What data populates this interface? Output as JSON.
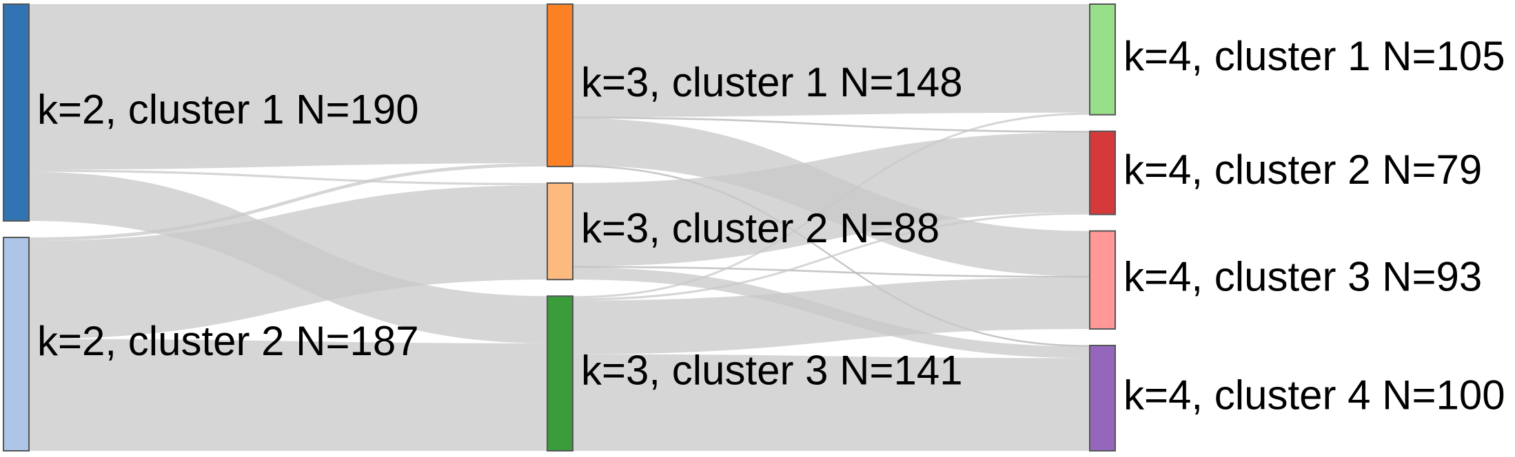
{
  "diagram": {
    "type": "sankey",
    "nodes": [
      {
        "id": "k2c1",
        "label": "k=2, cluster 1 N=190",
        "column": 0,
        "value": 190,
        "color": "#3274b3"
      },
      {
        "id": "k2c2",
        "label": "k=2, cluster 2 N=187",
        "column": 0,
        "value": 187,
        "color": "#adc6e7"
      },
      {
        "id": "k3c1",
        "label": "k=3, cluster 1 N=148",
        "column": 1,
        "value": 148,
        "color": "#fc8125"
      },
      {
        "id": "k3c2",
        "label": "k=3, cluster 2 N=88",
        "column": 1,
        "value": 88,
        "color": "#fdba7f"
      },
      {
        "id": "k3c3",
        "label": "k=3, cluster 3 N=141",
        "column": 1,
        "value": 141,
        "color": "#3a9c3a"
      },
      {
        "id": "k4c1",
        "label": "k=4, cluster 1 N=105",
        "column": 2,
        "value": 105,
        "color": "#98df8a"
      },
      {
        "id": "k4c2",
        "label": "k=4, cluster 2 N=79",
        "column": 2,
        "value": 79,
        "color": "#d6393a"
      },
      {
        "id": "k4c3",
        "label": "k=4, cluster 3 N=93",
        "column": 2,
        "value": 93,
        "color": "#ff9896"
      },
      {
        "id": "k4c4",
        "label": "k=4, cluster 4 N=100",
        "column": 2,
        "value": 100,
        "color": "#9467bd"
      }
    ],
    "links": [
      {
        "source": "k2c1",
        "target": "k3c1",
        "value": 145
      },
      {
        "source": "k2c1",
        "target": "k3c2",
        "value": 2
      },
      {
        "source": "k2c1",
        "target": "k3c3",
        "value": 43
      },
      {
        "source": "k2c2",
        "target": "k3c1",
        "value": 3
      },
      {
        "source": "k2c2",
        "target": "k3c2",
        "value": 86
      },
      {
        "source": "k2c2",
        "target": "k3c3",
        "value": 98
      },
      {
        "source": "k3c1",
        "target": "k4c1",
        "value": 103
      },
      {
        "source": "k3c1",
        "target": "k4c2",
        "value": 1
      },
      {
        "source": "k3c1",
        "target": "k4c3",
        "value": 43
      },
      {
        "source": "k3c1",
        "target": "k4c4",
        "value": 1
      },
      {
        "source": "k3c2",
        "target": "k4c2",
        "value": 76
      },
      {
        "source": "k3c2",
        "target": "k4c3",
        "value": 1
      },
      {
        "source": "k3c2",
        "target": "k4c4",
        "value": 11
      },
      {
        "source": "k3c3",
        "target": "k4c1",
        "value": 2
      },
      {
        "source": "k3c3",
        "target": "k4c2",
        "value": 2
      },
      {
        "source": "k3c3",
        "target": "k4c3",
        "value": 49
      },
      {
        "source": "k3c3",
        "target": "k4c4",
        "value": 88
      }
    ],
    "link_color": "#c8c8c8",
    "highlight_link_color": "#a8a8a8",
    "node_border_color": "#555555",
    "label_color": "#000000"
  }
}
